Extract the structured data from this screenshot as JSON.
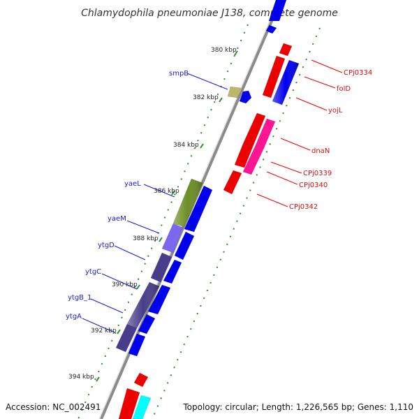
{
  "title": "Chlamydophila pneumoniae J138, complete genome",
  "footer": {
    "accession": "Accession: NC_002491",
    "summary": "Topology: circular; Length: 1,226,565 bp; Genes: 1,110"
  },
  "scale_ticks": [
    {
      "label": "380 kbp",
      "kbp": 380
    },
    {
      "label": "382 kbp",
      "kbp": 382
    },
    {
      "label": "384 kbp",
      "kbp": 384
    },
    {
      "label": "386 kbp",
      "kbp": 386
    },
    {
      "label": "388 kbp",
      "kbp": 388
    },
    {
      "label": "390 kbp",
      "kbp": 390
    },
    {
      "label": "392 kbp",
      "kbp": 392
    },
    {
      "label": "394 kbp",
      "kbp": 394
    }
  ],
  "gene_labels_left": [
    "smpB",
    "yaeL",
    "yaeM",
    "ytgD",
    "ytgC",
    "ytgB_1",
    "ytgA"
  ],
  "gene_labels_right": [
    "CPj0334",
    "folD",
    "yojL",
    "dnaN",
    "CPj0339",
    "CPj0340",
    "CPj0342"
  ],
  "colors": {
    "backbone": "#8a8a8a",
    "tick_dots": "#2e8b2e",
    "cds_forward": "#0000ee",
    "cds_reverse": "#ee0000",
    "magenta": "#ff1493",
    "olive": "#6b8e23",
    "khaki": "#bdb76b",
    "lavender": "#7b68ee",
    "darkslate": "#483d8b",
    "cyan": "#00ffff"
  }
}
